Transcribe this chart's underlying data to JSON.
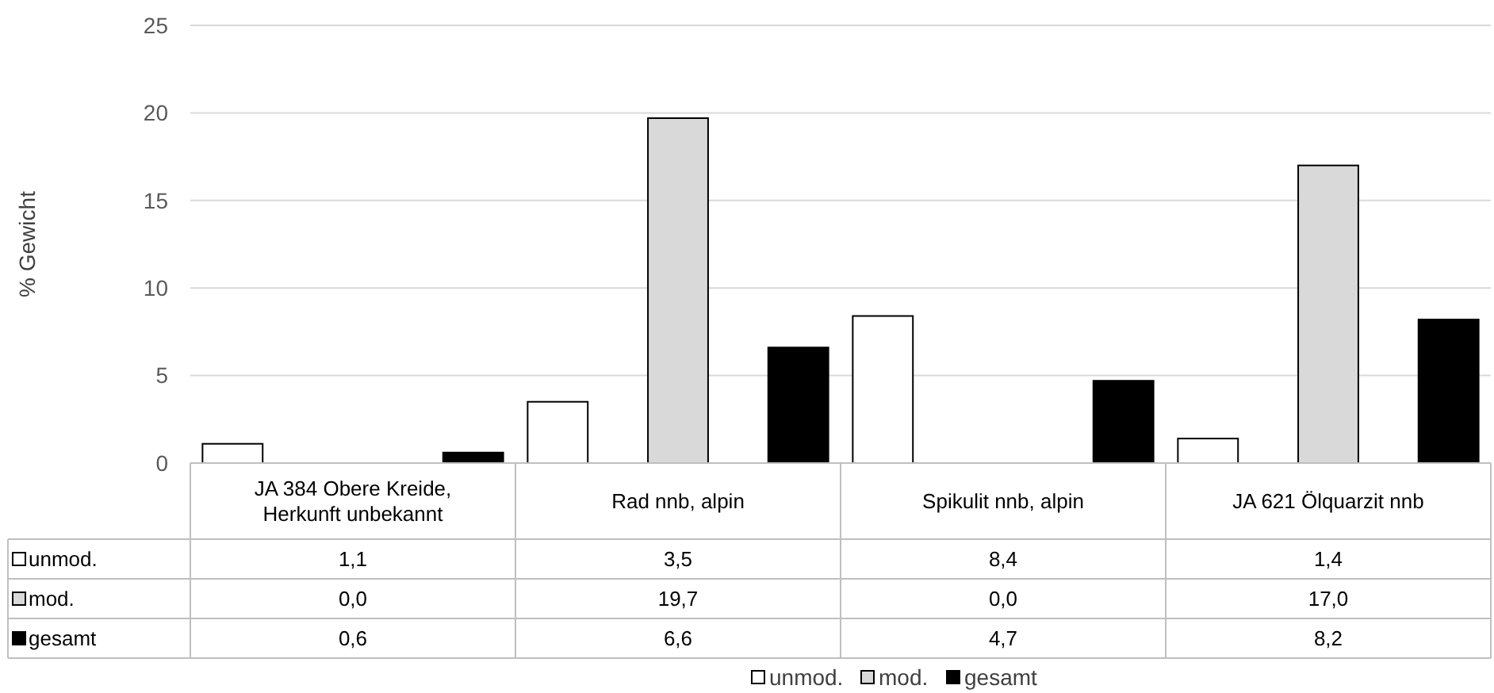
{
  "chart_data": {
    "type": "bar",
    "ylabel": "% Gewicht",
    "categories": [
      "JA 384 Obere Kreide, Herkunft unbekannt",
      "Rad nnb, alpin",
      "Spikulit nnb, alpin",
      "JA 621 Ölquarzit nnb"
    ],
    "series": [
      {
        "name": "unmod.",
        "color": "#ffffff",
        "values": [
          1.1,
          3.5,
          8.4,
          1.4
        ],
        "value_labels": [
          "1,1",
          "3,5",
          "8,4",
          "1,4"
        ]
      },
      {
        "name": "mod.",
        "color": "#d9d9d9",
        "values": [
          0.0,
          19.7,
          0.0,
          17.0
        ],
        "value_labels": [
          "0,0",
          "19,7",
          "0,0",
          "17,0"
        ]
      },
      {
        "name": "gesamt",
        "color": "#000000",
        "values": [
          0.6,
          6.6,
          4.7,
          8.2
        ],
        "value_labels": [
          "0,6",
          "6,6",
          "4,7",
          "8,2"
        ]
      }
    ],
    "ylim": [
      0,
      25
    ],
    "yticks": [
      0,
      5,
      10,
      15,
      20,
      25
    ],
    "grid": "y",
    "legend": "bottom"
  }
}
